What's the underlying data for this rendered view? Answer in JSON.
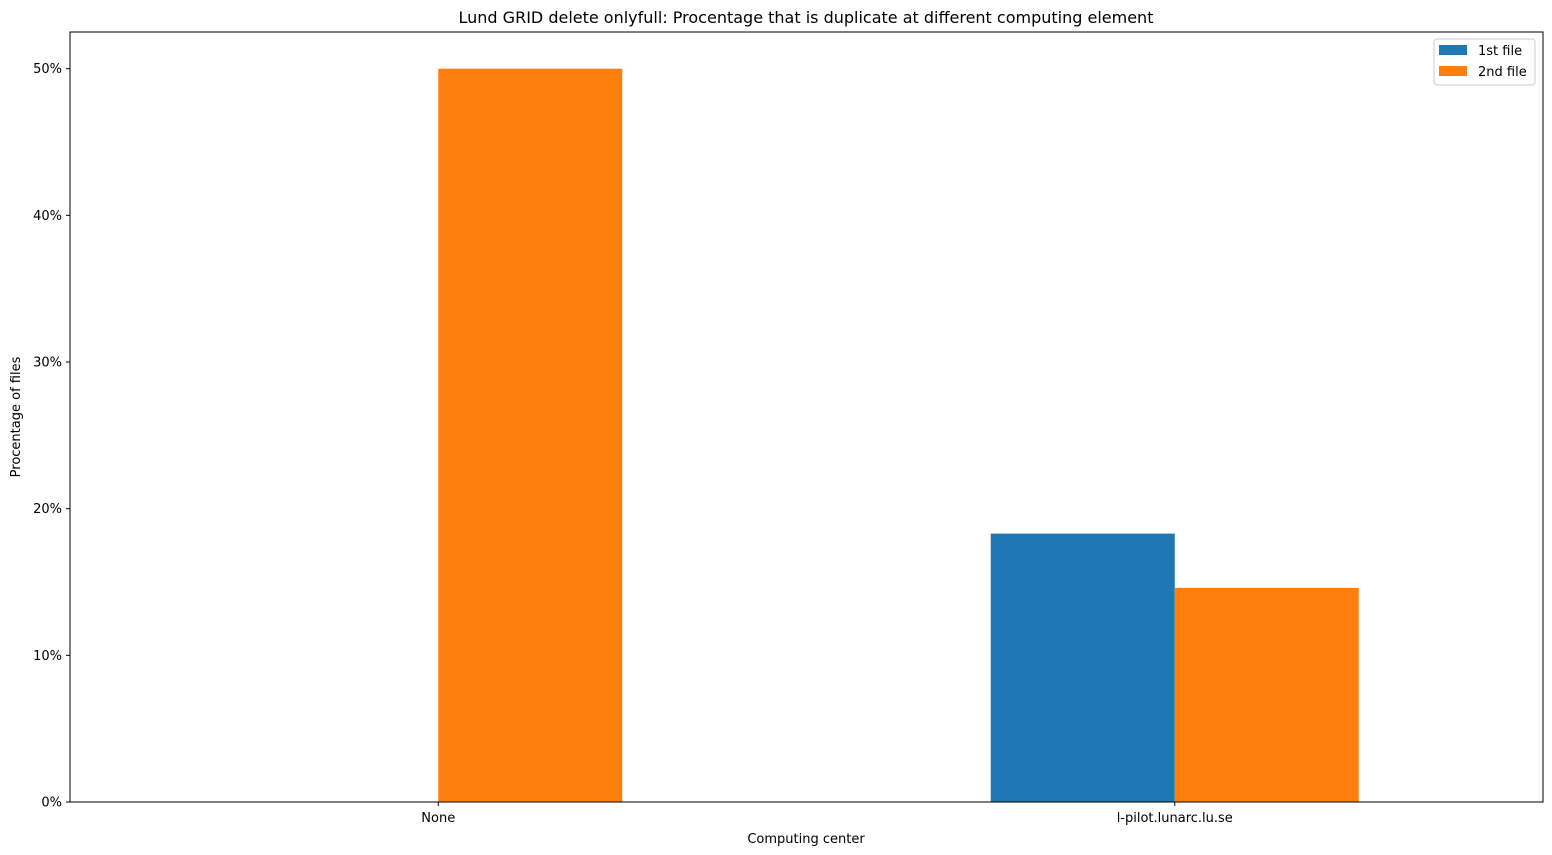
{
  "chart_data": {
    "type": "bar",
    "title": "Lund GRID delete onlyfull: Procentage that is duplicate at different computing element",
    "xlabel": "Computing center",
    "ylabel": "Procentage of files",
    "categories": [
      "None",
      "l-pilot.lunarc.lu.se"
    ],
    "series": [
      {
        "name": "1st file",
        "values": [
          0,
          18.3
        ],
        "color": "#1f77b4"
      },
      {
        "name": "2nd file",
        "values": [
          50,
          14.6
        ],
        "color": "#ff7f0e"
      }
    ],
    "ylim": [
      0,
      52.5
    ],
    "yticks": [
      0,
      10,
      20,
      30,
      40,
      50
    ],
    "ytick_labels": [
      "0%",
      "10%",
      "20%",
      "30%",
      "40%",
      "50%"
    ],
    "grid": false,
    "legend_position": "top-right"
  }
}
